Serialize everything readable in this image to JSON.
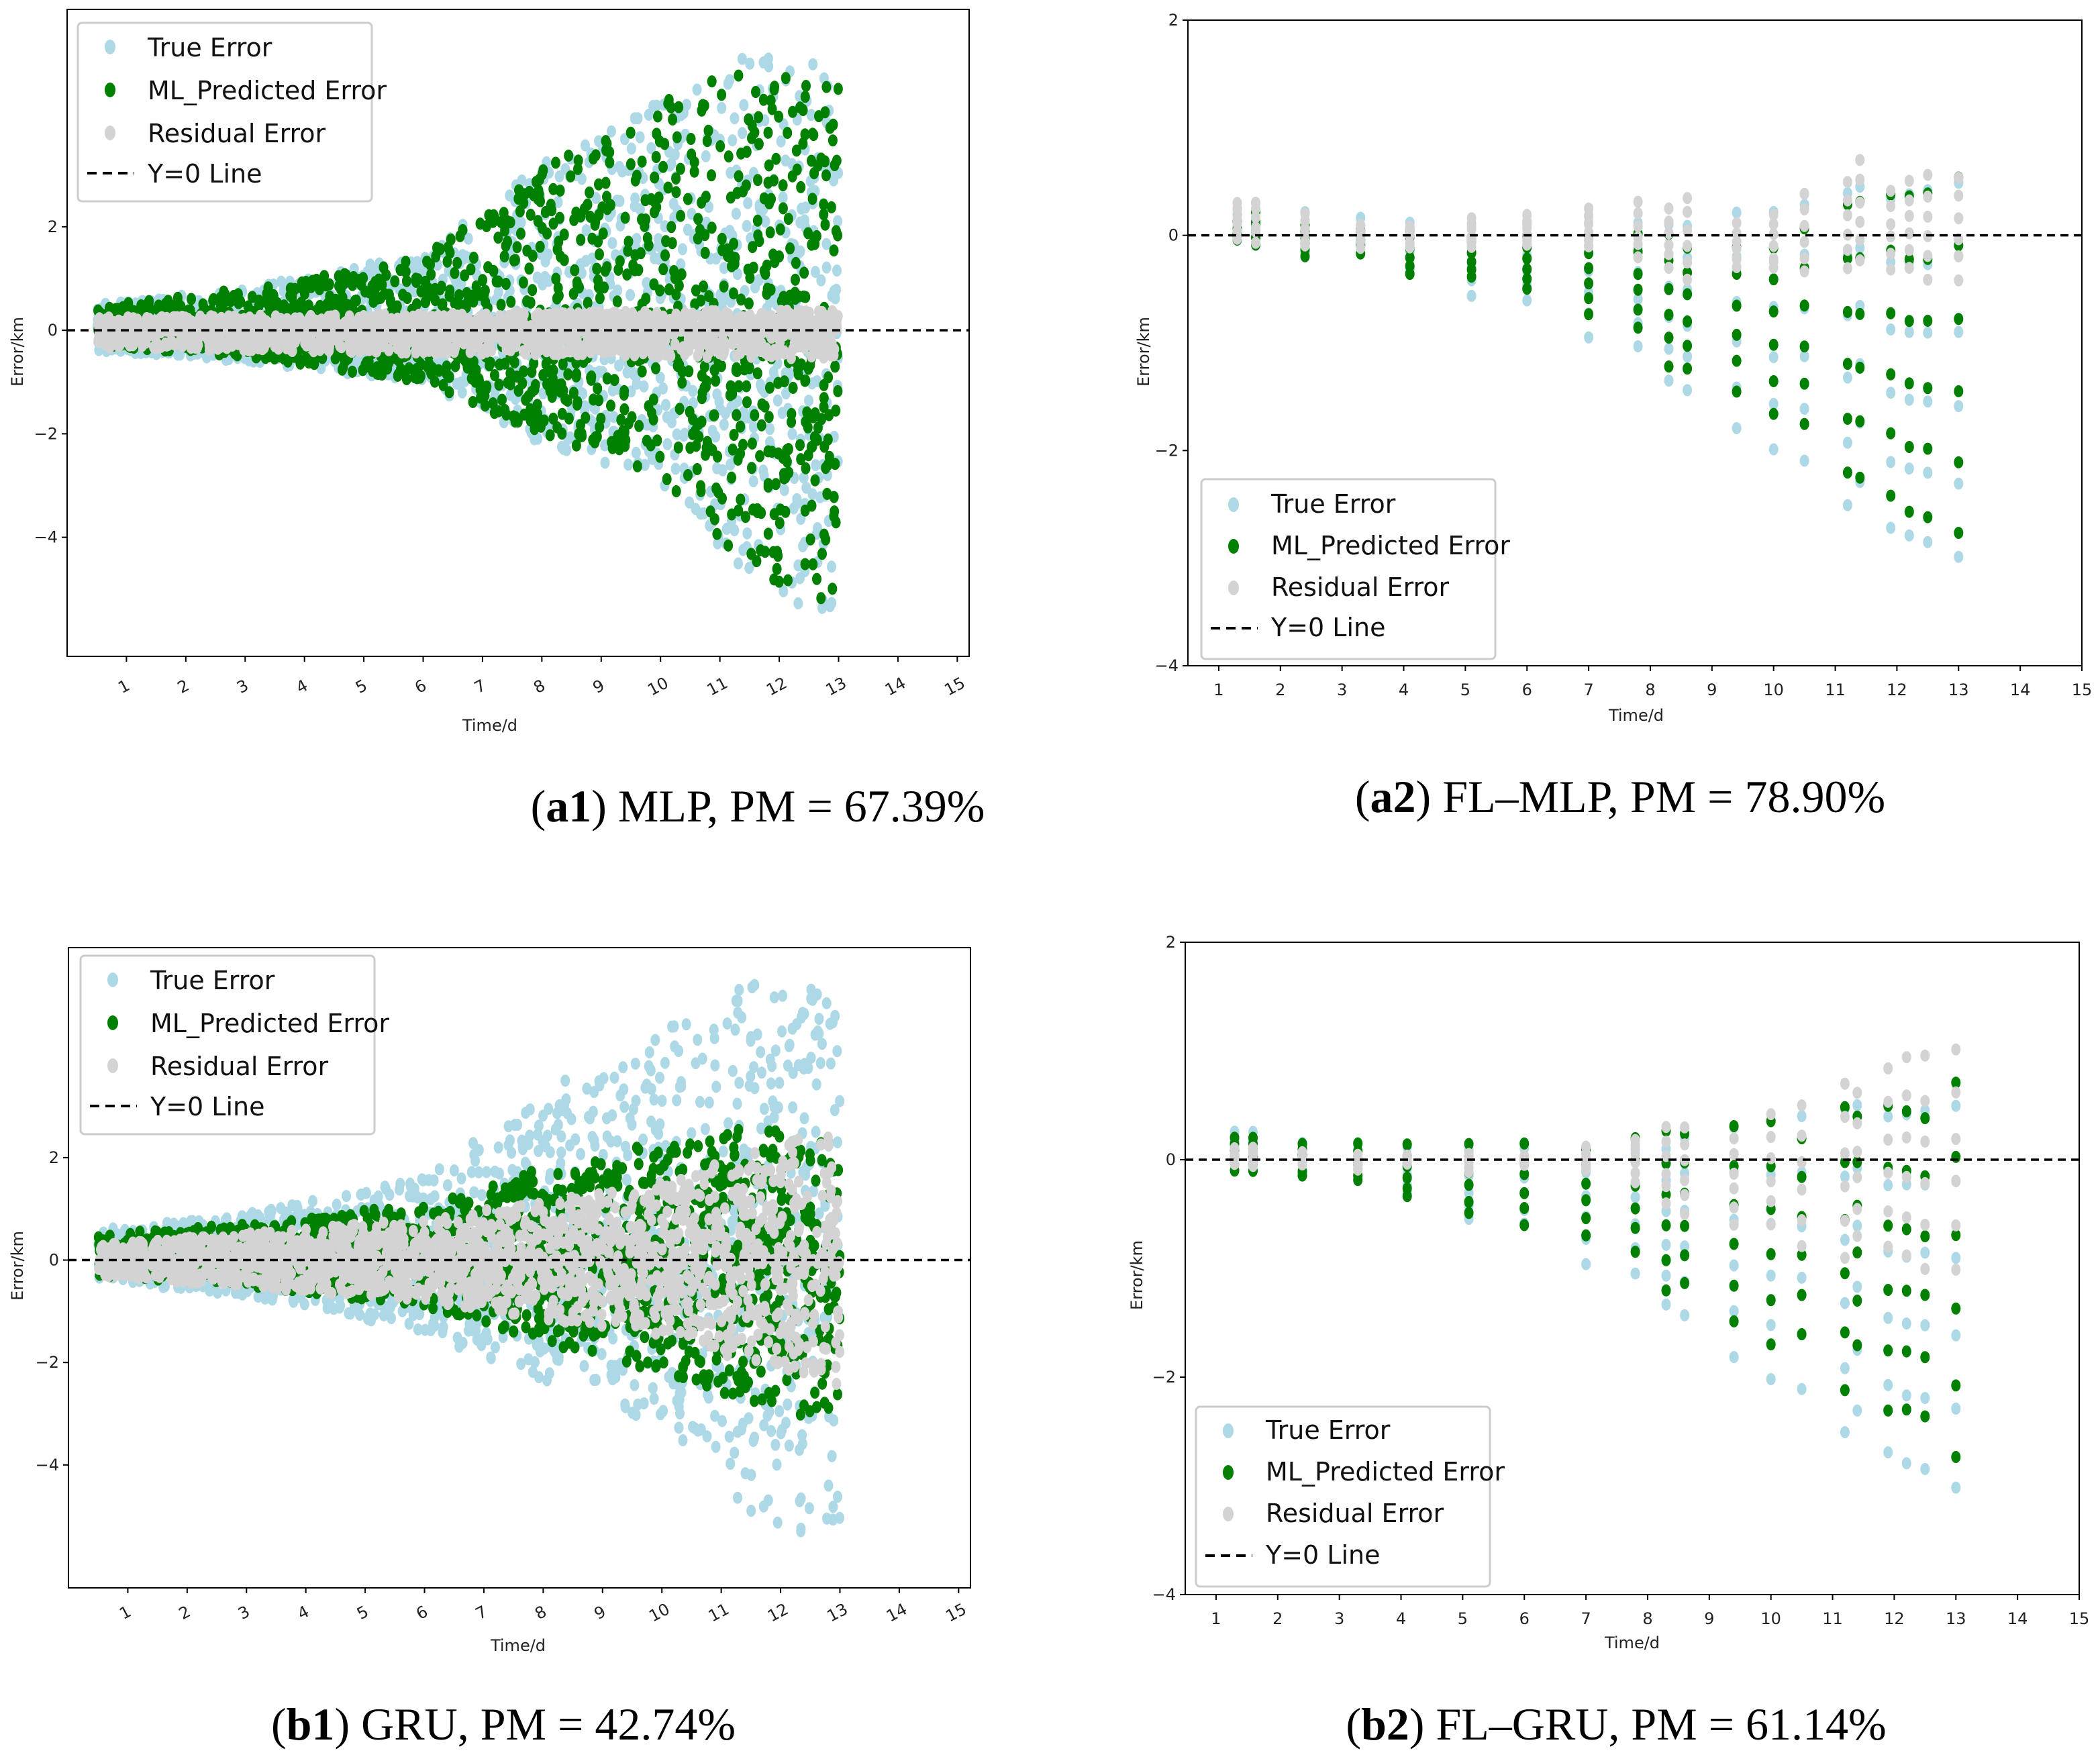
{
  "colors": {
    "true_error": "#add8e6",
    "predicted": "#008000",
    "residual": "#d3d3d3",
    "zero_line": "#000000"
  },
  "legend": [
    "True Error",
    "ML_Predicted Error",
    "Residual Error",
    "Y=0 Line"
  ],
  "xlabel": "Time/d",
  "ylabel": "Error/km",
  "captions": [
    {
      "id": "a1",
      "model": "MLP",
      "pm": "PM = 67.39%"
    },
    {
      "id": "a2",
      "model": "FL–MLP",
      "pm": "PM = 78.90%"
    },
    {
      "id": "b1",
      "model": "GRU",
      "pm": "PM = 42.74%"
    },
    {
      "id": "b2",
      "model": "FL–GRU",
      "pm": "PM = 61.14%"
    }
  ],
  "chart_data": [
    {
      "id": "a1",
      "type": "scatter",
      "title": "MLP, PM = 67.39%",
      "xlabel": "Time/d",
      "ylabel": "Error/km",
      "xlim": [
        0,
        15.2
      ],
      "ylim": [
        -6.3,
        6.2
      ],
      "xticks": [
        1,
        2,
        3,
        4,
        5,
        6,
        7,
        8,
        9,
        10,
        11,
        12,
        13,
        14,
        15
      ],
      "yticks": [
        -4,
        -2,
        0,
        2
      ],
      "rotate_xticks": true,
      "legend_position": "upper-left",
      "points_per_series": 1800,
      "series": [
        {
          "name": "True Error",
          "envelope": {
            "pos": [
              [
                0.5,
                0.5
              ],
              [
                3,
                0.8
              ],
              [
                6,
                1.5
              ],
              [
                8,
                3.3
              ],
              [
                10,
                4.5
              ],
              [
                11.5,
                5.5
              ],
              [
                13,
                5.3
              ]
            ],
            "neg": [
              [
                0.5,
                -0.4
              ],
              [
                3,
                -0.6
              ],
              [
                6,
                -1
              ],
              [
                8,
                -2.2
              ],
              [
                10,
                -3
              ],
              [
                11.5,
                -4.8
              ],
              [
                13,
                -5.7
              ]
            ]
          }
        },
        {
          "name": "ML_Predicted Error",
          "envelope": {
            "pos": [
              [
                0.5,
                0.45
              ],
              [
                3,
                0.8
              ],
              [
                6,
                1.4
              ],
              [
                8,
                3.1
              ],
              [
                10,
                4.4
              ],
              [
                11.5,
                5.2
              ],
              [
                13,
                4.7
              ]
            ],
            "neg": [
              [
                0.5,
                -0.3
              ],
              [
                3,
                -0.5
              ],
              [
                6,
                -1
              ],
              [
                8,
                -2
              ],
              [
                10,
                -2.8
              ],
              [
                11.5,
                -4.6
              ],
              [
                13,
                -5.4
              ]
            ]
          }
        },
        {
          "name": "Residual Error",
          "envelope": {
            "pos": [
              [
                0.5,
                0.25
              ],
              [
                13,
                0.4
              ]
            ],
            "neg": [
              [
                0.5,
                -0.35
              ],
              [
                13,
                -0.55
              ]
            ]
          }
        }
      ]
    },
    {
      "id": "a2",
      "type": "scatter",
      "title": "FL–MLP, PM = 78.90%",
      "xlabel": "Time/d",
      "ylabel": "Error/km",
      "xlim": [
        0.5,
        15
      ],
      "ylim": [
        -4,
        2
      ],
      "xticks": [
        1,
        2,
        3,
        4,
        5,
        6,
        7,
        8,
        9,
        10,
        11,
        12,
        13,
        14,
        15
      ],
      "yticks": [
        -4,
        -2,
        0,
        2
      ],
      "rotate_xticks": false,
      "legend_position": "lower-left",
      "times": [
        1.3,
        1.6,
        2.4,
        3.3,
        4.1,
        5.1,
        6.0,
        7.0,
        7.8,
        8.3,
        8.6,
        9.4,
        10.0,
        10.5,
        11.2,
        11.4,
        11.9,
        12.2,
        12.5,
        13.0
      ],
      "series": [
        {
          "name": "True Error",
          "ranges": [
            [
              -0.05,
              0.25
            ],
            [
              -0.1,
              0.3
            ],
            [
              -0.15,
              0.2
            ],
            [
              -0.1,
              0.15
            ],
            [
              -0.3,
              0.1
            ],
            [
              -0.55,
              0.1
            ],
            [
              -0.6,
              0.1
            ],
            [
              -0.95,
              0.1
            ],
            [
              -1.05,
              0.1
            ],
            [
              -1.35,
              0.1
            ],
            [
              -1.45,
              0.1
            ],
            [
              -1.8,
              0.2
            ],
            [
              -2.0,
              0.2
            ],
            [
              -2.1,
              0.3
            ],
            [
              -2.5,
              0.4
            ],
            [
              -2.3,
              0.45
            ],
            [
              -2.7,
              0.35
            ],
            [
              -2.8,
              0.4
            ],
            [
              -2.85,
              0.4
            ],
            [
              -3.0,
              0.5
            ]
          ]
        },
        {
          "name": "ML_Predicted Error",
          "ranges": [
            [
              -0.05,
              0.15
            ],
            [
              -0.1,
              0.2
            ],
            [
              -0.2,
              0.1
            ],
            [
              -0.15,
              0.05
            ],
            [
              -0.35,
              0.05
            ],
            [
              -0.4,
              0.0
            ],
            [
              -0.5,
              0.0
            ],
            [
              -0.75,
              0.0
            ],
            [
              -0.85,
              0.0
            ],
            [
              -1.2,
              0.0
            ],
            [
              -1.25,
              -0.1
            ],
            [
              -1.45,
              -0.1
            ],
            [
              -1.65,
              -0.1
            ],
            [
              -1.75,
              0.05
            ],
            [
              -2.2,
              0.3
            ],
            [
              -2.25,
              0.3
            ],
            [
              -2.4,
              0.4
            ],
            [
              -2.55,
              0.35
            ],
            [
              -2.6,
              0.4
            ],
            [
              -2.75,
              0.55
            ]
          ]
        },
        {
          "name": "Residual Error",
          "ranges": [
            [
              -0.05,
              0.3
            ],
            [
              -0.05,
              0.3
            ],
            [
              -0.1,
              0.2
            ],
            [
              -0.1,
              0.1
            ],
            [
              -0.1,
              0.1
            ],
            [
              -0.1,
              0.15
            ],
            [
              -0.1,
              0.2
            ],
            [
              -0.1,
              0.25
            ],
            [
              -0.2,
              0.3
            ],
            [
              -0.3,
              0.25
            ],
            [
              -0.4,
              0.35
            ],
            [
              -0.3,
              0.1
            ],
            [
              -0.3,
              0.2
            ],
            [
              -0.35,
              0.4
            ],
            [
              -0.3,
              0.5
            ],
            [
              -0.25,
              0.7
            ],
            [
              -0.3,
              0.4
            ],
            [
              -0.3,
              0.5
            ],
            [
              -0.4,
              0.55
            ],
            [
              -0.4,
              0.55
            ]
          ]
        }
      ]
    },
    {
      "id": "b1",
      "type": "scatter",
      "title": "GRU, PM = 42.74%",
      "xlabel": "Time/d",
      "ylabel": "Error/km",
      "xlim": [
        0,
        15.2
      ],
      "ylim": [
        -6.4,
        6.1
      ],
      "xticks": [
        1,
        2,
        3,
        4,
        5,
        6,
        7,
        8,
        9,
        10,
        11,
        12,
        13,
        14,
        15
      ],
      "yticks": [
        -4,
        -2,
        0,
        2
      ],
      "rotate_xticks": true,
      "legend_position": "upper-left",
      "points_per_series": 1800,
      "series": [
        {
          "name": "True Error",
          "envelope": {
            "pos": [
              [
                0.5,
                0.6
              ],
              [
                3,
                0.9
              ],
              [
                6,
                1.6
              ],
              [
                8,
                3.3
              ],
              [
                10,
                4.5
              ],
              [
                11.5,
                5.4
              ],
              [
                13,
                5.3
              ]
            ],
            "neg": [
              [
                0.5,
                -0.4
              ],
              [
                3,
                -0.7
              ],
              [
                6,
                -1.4
              ],
              [
                8,
                -2.4
              ],
              [
                10,
                -3.2
              ],
              [
                11.5,
                -5
              ],
              [
                13,
                -5.7
              ]
            ]
          }
        },
        {
          "name": "ML_Predicted Error",
          "envelope": {
            "pos": [
              [
                0.5,
                0.5
              ],
              [
                3,
                0.7
              ],
              [
                6,
                1.1
              ],
              [
                8,
                1.8
              ],
              [
                10,
                2.3
              ],
              [
                11.5,
                2.6
              ],
              [
                13,
                2.3
              ]
            ],
            "neg": [
              [
                0.5,
                -0.3
              ],
              [
                3,
                -0.5
              ],
              [
                6,
                -0.9
              ],
              [
                8,
                -1.6
              ],
              [
                10,
                -2.2
              ],
              [
                11.5,
                -2.8
              ],
              [
                13,
                -3.2
              ]
            ]
          }
        },
        {
          "name": "Residual Error",
          "envelope": {
            "pos": [
              [
                0.5,
                0.3
              ],
              [
                6,
                0.8
              ],
              [
                10,
                1.5
              ],
              [
                13,
                2.7
              ]
            ],
            "neg": [
              [
                0.5,
                -0.3
              ],
              [
                6,
                -0.8
              ],
              [
                10,
                -1.5
              ],
              [
                13,
                -2.5
              ]
            ]
          }
        }
      ]
    },
    {
      "id": "b2",
      "type": "scatter",
      "title": "FL–GRU, PM = 61.14%",
      "xlabel": "Time/d",
      "ylabel": "Error/km",
      "xlim": [
        0.5,
        15
      ],
      "ylim": [
        -4,
        2
      ],
      "xticks": [
        1,
        2,
        3,
        4,
        5,
        6,
        7,
        8,
        9,
        10,
        11,
        12,
        13,
        14,
        15
      ],
      "yticks": [
        -4,
        -2,
        0,
        2
      ],
      "rotate_xticks": false,
      "legend_position": "lower-left",
      "times": [
        1.3,
        1.6,
        2.4,
        3.3,
        4.1,
        5.1,
        6.0,
        7.0,
        7.8,
        8.3,
        8.6,
        9.4,
        10.0,
        10.5,
        11.2,
        11.4,
        11.9,
        12.2,
        12.5,
        13.0
      ],
      "series": [
        {
          "name": "True Error",
          "ranges": [
            [
              -0.05,
              0.25
            ],
            [
              -0.1,
              0.25
            ],
            [
              -0.15,
              0.15
            ],
            [
              -0.15,
              0.15
            ],
            [
              -0.3,
              0.1
            ],
            [
              -0.55,
              0.1
            ],
            [
              -0.6,
              0.1
            ],
            [
              -0.95,
              0.1
            ],
            [
              -1.05,
              0.1
            ],
            [
              -1.35,
              0.1
            ],
            [
              -1.45,
              0.2
            ],
            [
              -1.8,
              0.3
            ],
            [
              -2.0,
              0.35
            ],
            [
              -2.1,
              0.4
            ],
            [
              -2.5,
              0.45
            ],
            [
              -2.3,
              0.5
            ],
            [
              -2.7,
              0.4
            ],
            [
              -2.8,
              0.4
            ],
            [
              -2.85,
              0.45
            ],
            [
              -3.0,
              0.5
            ]
          ]
        },
        {
          "name": "ML_Predicted Error",
          "ranges": [
            [
              -0.1,
              0.2
            ],
            [
              -0.1,
              0.2
            ],
            [
              -0.15,
              0.15
            ],
            [
              -0.2,
              0.15
            ],
            [
              -0.35,
              0.15
            ],
            [
              -0.5,
              0.15
            ],
            [
              -0.6,
              0.15
            ],
            [
              -0.7,
              0.1
            ],
            [
              -0.85,
              0.2
            ],
            [
              -1.2,
              0.25
            ],
            [
              -1.15,
              0.25
            ],
            [
              -1.5,
              0.3
            ],
            [
              -1.7,
              0.35
            ],
            [
              -1.6,
              0.2
            ],
            [
              -2.1,
              0.5
            ],
            [
              -1.7,
              0.4
            ],
            [
              -2.3,
              0.5
            ],
            [
              -2.3,
              0.45
            ],
            [
              -2.35,
              0.4
            ],
            [
              -2.75,
              0.7
            ]
          ]
        },
        {
          "name": "Residual Error",
          "ranges": [
            [
              -0.05,
              0.1
            ],
            [
              -0.05,
              0.1
            ],
            [
              -0.05,
              0.05
            ],
            [
              -0.1,
              0.05
            ],
            [
              -0.05,
              0.05
            ],
            [
              -0.1,
              0.05
            ],
            [
              -0.05,
              0.05
            ],
            [
              -0.1,
              0.1
            ],
            [
              -0.2,
              0.2
            ],
            [
              -0.4,
              0.3
            ],
            [
              -0.5,
              0.3
            ],
            [
              -0.6,
              0.2
            ],
            [
              -0.6,
              0.4
            ],
            [
              -0.8,
              0.5
            ],
            [
              -0.9,
              0.7
            ],
            [
              -0.7,
              0.6
            ],
            [
              -0.8,
              0.85
            ],
            [
              -0.9,
              0.95
            ],
            [
              -1.0,
              0.95
            ],
            [
              -1.0,
              1.0
            ]
          ]
        }
      ]
    }
  ]
}
